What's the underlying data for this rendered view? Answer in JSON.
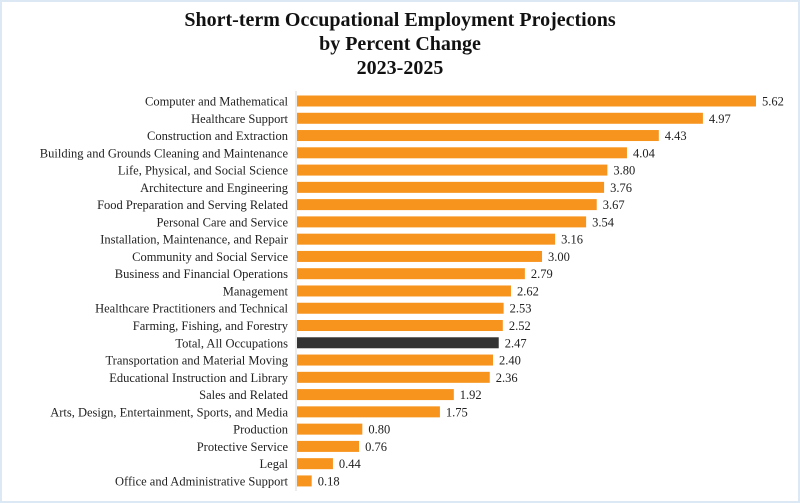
{
  "chart_data": {
    "type": "bar",
    "orientation": "horizontal",
    "title_lines": [
      "Short-term Occupational Employment Projections",
      "by Percent Change",
      "2023-2025"
    ],
    "xlabel": "",
    "ylabel": "",
    "xlim": [
      0,
      5.62
    ],
    "grid": false,
    "categories": [
      "Computer and Mathematical",
      "Healthcare Support",
      "Construction and Extraction",
      "Building and Grounds Cleaning and Maintenance",
      "Life, Physical, and Social Science",
      "Architecture and Engineering",
      "Food Preparation and Serving Related",
      "Personal Care and Service",
      "Installation, Maintenance, and Repair",
      "Community and Social Service",
      "Business and Financial Operations",
      "Management",
      "Healthcare Practitioners and Technical",
      "Farming, Fishing, and Forestry",
      "Total, All Occupations",
      "Transportation and Material Moving",
      "Educational Instruction and Library",
      "Sales and Related",
      "Arts, Design, Entertainment, Sports, and Media",
      "Production",
      "Protective Service",
      "Legal",
      "Office and Administrative Support"
    ],
    "values": [
      5.62,
      4.97,
      4.43,
      4.04,
      3.8,
      3.76,
      3.67,
      3.54,
      3.16,
      3.0,
      2.79,
      2.62,
      2.53,
      2.52,
      2.47,
      2.4,
      2.36,
      1.92,
      1.75,
      0.8,
      0.76,
      0.44,
      0.18
    ],
    "value_labels": [
      "5.62",
      "4.97",
      "4.43",
      "4.04",
      "3.80",
      "3.76",
      "3.67",
      "3.54",
      "3.16",
      "3.00",
      "2.79",
      "2.62",
      "2.53",
      "2.52",
      "2.47",
      "2.40",
      "2.36",
      "1.92",
      "1.75",
      "0.80",
      "0.76",
      "0.44",
      "0.18"
    ],
    "highlight_category": "Total, All Occupations",
    "colors": {
      "bar": "#f7941d",
      "highlight": "#333333",
      "axis": "#d9d9d9"
    }
  }
}
